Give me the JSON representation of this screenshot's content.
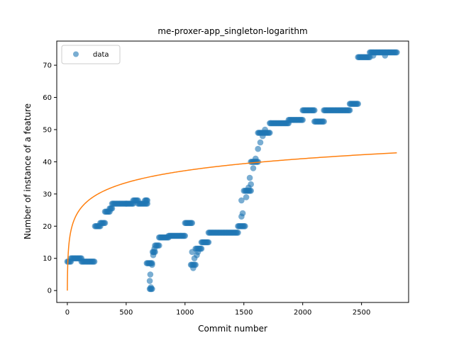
{
  "chart_data": {
    "type": "scatter",
    "title": "me-proxer-app_singleton-logarithm",
    "xlabel": "Commit number",
    "ylabel": "Number of instance of a feature",
    "xlim": [
      -90,
      2900
    ],
    "ylim": [
      -3.7,
      77.5
    ],
    "xticks": [
      0,
      500,
      1000,
      1500,
      2000,
      2500
    ],
    "yticks": [
      0,
      10,
      20,
      30,
      40,
      50,
      60,
      70
    ],
    "grid": false,
    "legend": {
      "placement": "top-left",
      "entries": [
        "data"
      ]
    },
    "colors": {
      "data": "#1f77b4",
      "fit": "#ff7f0e"
    },
    "series": [
      {
        "name": "data",
        "kind": "scatter",
        "segments": [
          {
            "x0": 0,
            "x1": 30,
            "y": 9
          },
          {
            "x0": 30,
            "x1": 120,
            "y": 10
          },
          {
            "x0": 120,
            "x1": 230,
            "y": 9
          },
          {
            "x0": 235,
            "x1": 280,
            "y": 20
          },
          {
            "x0": 280,
            "x1": 320,
            "y": 21
          },
          {
            "x0": 320,
            "x1": 360,
            "y": 24.5
          },
          {
            "x0": 360,
            "x1": 380,
            "y": 25.5
          },
          {
            "x0": 380,
            "x1": 500,
            "y": 27
          },
          {
            "x0": 500,
            "x1": 560,
            "y": 27
          },
          {
            "x0": 560,
            "x1": 600,
            "y": 28
          },
          {
            "x0": 600,
            "x1": 680,
            "y": 27
          },
          {
            "x0": 660,
            "x1": 680,
            "y": 28
          },
          {
            "x0": 675,
            "x1": 720,
            "y": 8.5
          },
          {
            "x0": 700,
            "x1": 720,
            "y": 0.5
          },
          {
            "x0": 725,
            "x1": 745,
            "y": 12
          },
          {
            "x0": 745,
            "x1": 780,
            "y": 14
          },
          {
            "x0": 780,
            "x1": 860,
            "y": 16.5
          },
          {
            "x0": 860,
            "x1": 1000,
            "y": 17
          },
          {
            "x0": 1000,
            "x1": 1060,
            "y": 21
          },
          {
            "x0": 1050,
            "x1": 1090,
            "y": 8
          },
          {
            "x0": 1090,
            "x1": 1140,
            "y": 13
          },
          {
            "x0": 1140,
            "x1": 1200,
            "y": 15
          },
          {
            "x0": 1200,
            "x1": 1450,
            "y": 18
          },
          {
            "x0": 1450,
            "x1": 1510,
            "y": 20
          },
          {
            "x0": 1510,
            "x1": 1560,
            "y": 31
          },
          {
            "x0": 1560,
            "x1": 1620,
            "y": 40
          },
          {
            "x0": 1620,
            "x1": 1720,
            "y": 49
          },
          {
            "x0": 1720,
            "x1": 1880,
            "y": 52
          },
          {
            "x0": 1880,
            "x1": 2000,
            "y": 53
          },
          {
            "x0": 2000,
            "x1": 2100,
            "y": 56
          },
          {
            "x0": 2100,
            "x1": 2180,
            "y": 52.5
          },
          {
            "x0": 2180,
            "x1": 2400,
            "y": 56
          },
          {
            "x0": 2400,
            "x1": 2470,
            "y": 58
          },
          {
            "x0": 2470,
            "x1": 2570,
            "y": 72.5
          },
          {
            "x0": 2570,
            "x1": 2800,
            "y": 74
          }
        ],
        "points": [
          [
            700,
            3
          ],
          [
            705,
            5
          ],
          [
            710,
            1
          ],
          [
            720,
            8
          ],
          [
            730,
            11
          ],
          [
            740,
            13
          ],
          [
            1060,
            12
          ],
          [
            1070,
            7
          ],
          [
            1080,
            10
          ],
          [
            1100,
            11
          ],
          [
            1110,
            12
          ],
          [
            1480,
            23
          ],
          [
            1490,
            24
          ],
          [
            1480,
            28
          ],
          [
            1500,
            31
          ],
          [
            1520,
            29
          ],
          [
            1540,
            32
          ],
          [
            1550,
            35
          ],
          [
            1560,
            33
          ],
          [
            1580,
            38
          ],
          [
            1600,
            41
          ],
          [
            1620,
            44
          ],
          [
            1640,
            46
          ],
          [
            1660,
            48
          ],
          [
            1680,
            50
          ],
          [
            2600,
            73
          ],
          [
            2700,
            73
          ]
        ]
      },
      {
        "name": "",
        "kind": "line",
        "formula": "y = a*ln(x+1)",
        "a": 5.39,
        "x_range": [
          0,
          2800
        ]
      }
    ]
  }
}
